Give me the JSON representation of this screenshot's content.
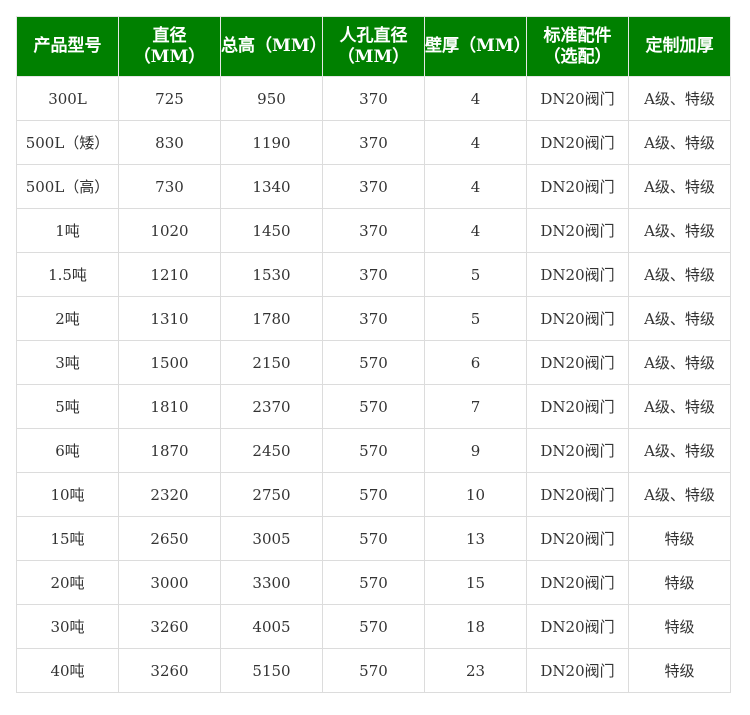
{
  "headers": [
    "产品型号",
    "直径\n（MM）",
    "总高（MM）",
    "人孔直径\n（MM）",
    "壁厚（MM）",
    "标准配件\n（选配）",
    "定制加厚"
  ],
  "rows": [
    [
      "300L",
      "725",
      "950",
      "370",
      "4",
      "DN20阀门",
      "A级、特级"
    ],
    [
      "500L（矮）",
      "830",
      "1190",
      "370",
      "4",
      "DN20阀门",
      "A级、特级"
    ],
    [
      "500L（高）",
      "730",
      "1340",
      "370",
      "4",
      "DN20阀门",
      "A级、特级"
    ],
    [
      "1吨",
      "1020",
      "1450",
      "370",
      "4",
      "DN20阀门",
      "A级、特级"
    ],
    [
      "1.5吨",
      "1210",
      "1530",
      "370",
      "5",
      "DN20阀门",
      "A级、特级"
    ],
    [
      "2吨",
      "1310",
      "1780",
      "370",
      "5",
      "DN20阀门",
      "A级、特级"
    ],
    [
      "3吨",
      "1500",
      "2150",
      "570",
      "6",
      "DN20阀门",
      "A级、特级"
    ],
    [
      "5吨",
      "1810",
      "2370",
      "570",
      "7",
      "DN20阀门",
      "A级、特级"
    ],
    [
      "6吨",
      "1870",
      "2450",
      "570",
      "9",
      "DN20阀门",
      "A级、特级"
    ],
    [
      "10吨",
      "2320",
      "2750",
      "570",
      "10",
      "DN20阀门",
      "A级、特级"
    ],
    [
      "15吨",
      "2650",
      "3005",
      "570",
      "13",
      "DN20阀门",
      "特级"
    ],
    [
      "20吨",
      "3000",
      "3300",
      "570",
      "15",
      "DN20阀门",
      "特级"
    ],
    [
      "30吨",
      "3260",
      "4005",
      "570",
      "18",
      "DN20阀门",
      "特级"
    ],
    [
      "40吨",
      "3260",
      "5150",
      "570",
      "23",
      "DN20阀门",
      "特级"
    ]
  ],
  "colors": {
    "header_bg": "#008000",
    "header_text": "#ffffff",
    "border": "#dcdcdc"
  }
}
